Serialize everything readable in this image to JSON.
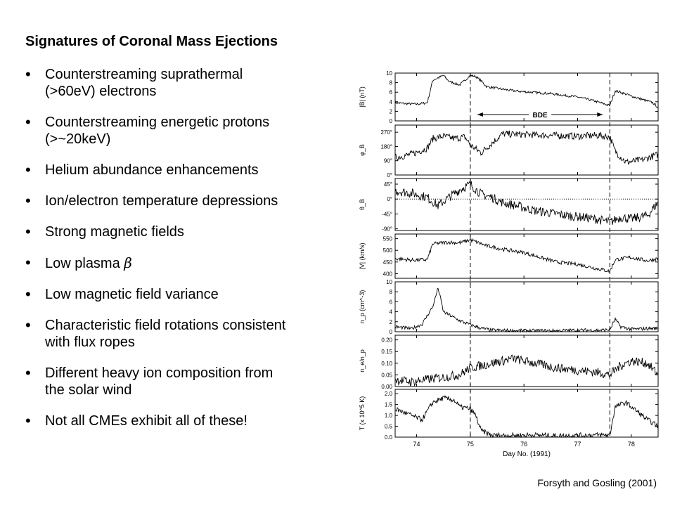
{
  "slide": {
    "title": "Signatures of Coronal Mass Ejections",
    "bullets": [
      {
        "lines": [
          "Counterstreaming suprathermal",
          "(>60eV) electrons"
        ]
      },
      {
        "lines": [
          "Counterstreaming energetic protons",
          "(>~20keV)"
        ]
      },
      {
        "lines": [
          "Helium abundance enhancements"
        ]
      },
      {
        "lines": [
          "Ion/electron temperature depressions"
        ]
      },
      {
        "lines": [
          "Strong magnetic fields"
        ]
      },
      {
        "lines": [
          "Low plasma "
        ],
        "symbol": "β"
      },
      {
        "lines": [
          "Low magnetic field variance"
        ]
      },
      {
        "lines": [
          "Characteristic field rotations consistent",
          "with flux ropes"
        ]
      },
      {
        "lines": [
          "Different heavy ion composition from",
          "the solar wind"
        ]
      },
      {
        "lines": [
          "Not all CMEs exhibit all of these!"
        ]
      }
    ],
    "citation": "Forsyth and Gosling (2001)"
  },
  "chart_data": {
    "type": "line",
    "xlabel": "Day No. (1991)",
    "xlim": [
      73.6,
      78.5
    ],
    "xticks": [
      74,
      75,
      76,
      77,
      78
    ],
    "xticklabels": [
      "74",
      "75",
      "76",
      "77",
      "78"
    ],
    "vlines": [
      75.0,
      77.6
    ],
    "annotation": {
      "label": "BDE",
      "from": 75.0,
      "to": 77.6
    },
    "panels": [
      {
        "key": "B",
        "ylabel": "|B| (nT)",
        "ylim": [
          0,
          10
        ],
        "yticks": [
          0,
          2,
          4,
          6,
          8,
          10
        ],
        "yticklabels": [
          "0",
          "2",
          "4",
          "6",
          "8",
          "10"
        ],
        "x": [
          73.6,
          73.8,
          74.0,
          74.2,
          74.3,
          74.5,
          74.6,
          74.8,
          75.0,
          75.1,
          75.2,
          75.3,
          75.5,
          75.8,
          76.0,
          76.5,
          77.0,
          77.3,
          77.6,
          77.7,
          77.8,
          78.0,
          78.2,
          78.4,
          78.5
        ],
        "values": [
          3.8,
          3.6,
          3.5,
          3.8,
          8.5,
          9.5,
          8.3,
          7.5,
          9.5,
          9.3,
          8.4,
          7.2,
          6.8,
          6.3,
          6.1,
          5.7,
          5.0,
          4.2,
          3.2,
          6.3,
          6.0,
          5.2,
          4.5,
          3.8,
          2.8
        ],
        "noise": 0.25,
        "dotted_zero": false
      },
      {
        "key": "phi",
        "ylabel": "φ_B",
        "ylim": [
          0,
          315
        ],
        "yticks": [
          0,
          90,
          180,
          270
        ],
        "yticklabels": [
          "0°",
          "90°",
          "180°",
          "270°"
        ],
        "x": [
          73.6,
          73.9,
          74.2,
          74.3,
          74.5,
          74.7,
          74.9,
          75.0,
          75.2,
          75.4,
          75.6,
          76.0,
          76.5,
          77.0,
          77.4,
          77.6,
          77.7,
          77.9,
          78.2,
          78.5
        ],
        "values": [
          110,
          130,
          170,
          230,
          245,
          230,
          240,
          190,
          140,
          200,
          260,
          255,
          250,
          245,
          250,
          240,
          150,
          80,
          95,
          130
        ],
        "noise": 22,
        "dotted_zero": false
      },
      {
        "key": "theta",
        "ylabel": "θ_B",
        "ylim": [
          -95,
          62
        ],
        "yticks": [
          -90,
          -45,
          0,
          45
        ],
        "yticklabels": [
          "-90°",
          "-45°",
          "0°",
          "45°"
        ],
        "x": [
          73.6,
          73.9,
          74.2,
          74.4,
          74.6,
          74.8,
          75.0,
          75.2,
          75.4,
          75.6,
          75.9,
          76.2,
          76.5,
          76.8,
          77.1,
          77.4,
          77.6,
          77.8,
          78.0,
          78.3,
          78.5
        ],
        "values": [
          25,
          18,
          5,
          -20,
          5,
          28,
          45,
          15,
          5,
          -10,
          -22,
          -35,
          -42,
          -50,
          -55,
          -62,
          -70,
          -55,
          -60,
          -50,
          -10
        ],
        "noise": 14,
        "dotted_zero": true
      },
      {
        "key": "V",
        "ylabel": "|V| (km/s)",
        "ylim": [
          380,
          570
        ],
        "yticks": [
          400,
          450,
          500,
          550
        ],
        "yticklabels": [
          "400",
          "450",
          "500",
          "550"
        ],
        "x": [
          73.6,
          73.9,
          74.2,
          74.3,
          74.6,
          74.8,
          75.0,
          75.3,
          75.6,
          76.0,
          76.3,
          76.6,
          77.0,
          77.3,
          77.6,
          77.7,
          78.0,
          78.3,
          78.5
        ],
        "values": [
          465,
          458,
          460,
          528,
          535,
          532,
          545,
          520,
          505,
          490,
          470,
          450,
          440,
          425,
          410,
          460,
          470,
          455,
          465
        ],
        "noise": 8,
        "dotted_zero": false
      },
      {
        "key": "np",
        "ylabel": "n_p (cm^-3)",
        "ylim": [
          0,
          10
        ],
        "yticks": [
          0,
          2,
          4,
          6,
          8,
          10
        ],
        "yticklabels": [
          "0",
          "2",
          "4",
          "6",
          "8",
          "10"
        ],
        "x": [
          73.6,
          73.9,
          74.1,
          74.3,
          74.4,
          74.5,
          74.7,
          74.8,
          75.0,
          75.2,
          75.4,
          75.8,
          76.2,
          76.6,
          77.0,
          77.4,
          77.6,
          77.7,
          77.8,
          78.0,
          78.5
        ],
        "values": [
          1.0,
          0.6,
          1.5,
          5.0,
          8.8,
          4.0,
          2.8,
          2.2,
          1.4,
          0.7,
          0.3,
          0.2,
          0.2,
          0.2,
          0.3,
          0.3,
          0.4,
          2.5,
          1.0,
          0.5,
          0.7
        ],
        "noise": 0.35,
        "dotted_zero": false
      },
      {
        "key": "ratio",
        "ylabel": "n_e/n_p",
        "ylim": [
          0,
          0.22
        ],
        "yticks": [
          0,
          0.05,
          0.1,
          0.15,
          0.2
        ],
        "yticklabels": [
          "0.00",
          "0.05",
          "0.10",
          "0.15",
          "0.20"
        ],
        "x": [
          73.6,
          73.9,
          74.2,
          74.5,
          74.8,
          75.0,
          75.4,
          75.8,
          76.2,
          76.6,
          77.0,
          77.4,
          77.6,
          77.8,
          78.0,
          78.3,
          78.5
        ],
        "values": [
          0.03,
          0.02,
          0.03,
          0.04,
          0.05,
          0.08,
          0.1,
          0.12,
          0.1,
          0.08,
          0.07,
          0.06,
          0.05,
          0.09,
          0.11,
          0.1,
          0.05
        ],
        "noise": 0.02,
        "dotted_zero": false
      },
      {
        "key": "T",
        "ylabel": "T (x 10^5 K)",
        "ylim": [
          0,
          2.2
        ],
        "yticks": [
          0,
          0.5,
          1.0,
          1.5,
          2.0
        ],
        "yticklabels": [
          "0.0",
          "0.5",
          "1.0",
          "1.5",
          "2.0"
        ],
        "x": [
          73.6,
          73.9,
          74.1,
          74.3,
          74.5,
          74.7,
          74.8,
          75.0,
          75.1,
          75.2,
          75.4,
          75.8,
          76.2,
          76.6,
          77.0,
          77.4,
          77.6,
          77.7,
          77.9,
          78.1,
          78.3,
          78.5
        ],
        "values": [
          1.3,
          1.0,
          0.8,
          1.6,
          1.8,
          1.7,
          1.4,
          1.3,
          1.0,
          0.3,
          0.08,
          0.08,
          0.1,
          0.06,
          0.08,
          0.1,
          0.1,
          1.4,
          1.6,
          1.2,
          0.8,
          0.5
        ],
        "noise": 0.12,
        "dotted_zero": false
      }
    ]
  }
}
